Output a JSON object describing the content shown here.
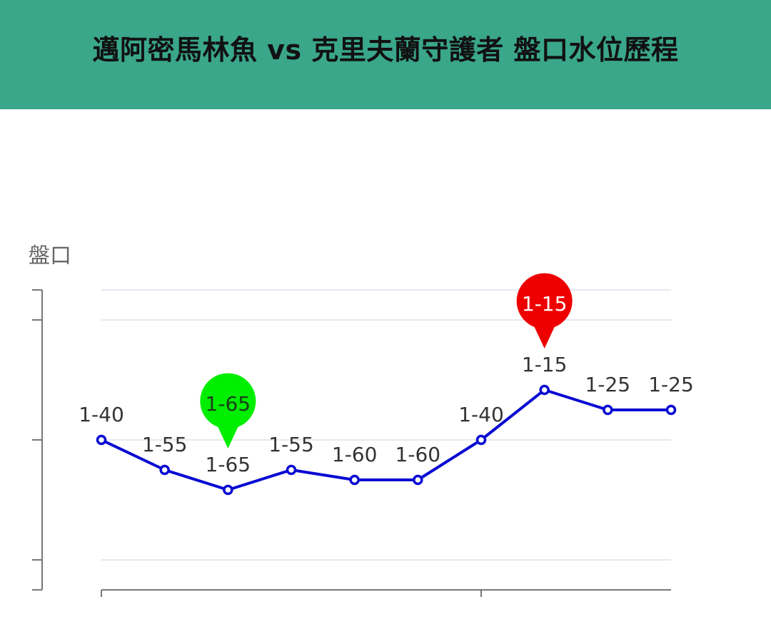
{
  "header": {
    "title": "邁阿密馬林魚 vs 克里夫蘭守護者 盤口水位歷程"
  },
  "chart_data": {
    "type": "line",
    "ylabel": "盤口",
    "grid": true,
    "line_color": "#0a0ad2",
    "header_color": "#3aa68a",
    "points": [
      {
        "label": "1-40",
        "value": 40
      },
      {
        "label": "1-55",
        "value": 55
      },
      {
        "label": "1-65",
        "value": 65
      },
      {
        "label": "1-55",
        "value": 55
      },
      {
        "label": "1-60",
        "value": 60
      },
      {
        "label": "1-60",
        "value": 60
      },
      {
        "label": "1-40",
        "value": 40
      },
      {
        "label": "1-15",
        "value": 15
      },
      {
        "label": "1-25",
        "value": 25
      },
      {
        "label": "1-25",
        "value": 25
      }
    ],
    "markers": [
      {
        "label": "1-65",
        "index": 2,
        "kind": "max",
        "color": "#00ee00"
      },
      {
        "label": "1-15",
        "index": 7,
        "kind": "min",
        "color": "#ee0000"
      }
    ]
  }
}
